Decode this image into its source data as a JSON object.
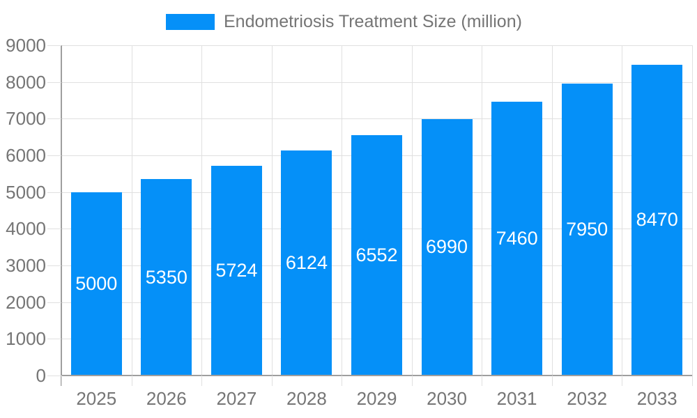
{
  "chart_data": {
    "type": "bar",
    "title": "Endometriosis Treatment Size (million)",
    "categories": [
      "2025",
      "2026",
      "2027",
      "2028",
      "2029",
      "2030",
      "2031",
      "2032",
      "2033"
    ],
    "series": [
      {
        "name": "Endometriosis Treatment Size (million)",
        "values": [
          5000,
          5350,
          5724,
          6124,
          6552,
          6990,
          7460,
          7950,
          8470
        ]
      }
    ],
    "xlabel": "",
    "ylabel": "",
    "ylim": [
      0,
      9000
    ],
    "ytick_step": 1000,
    "ytick_labels": [
      "0",
      "1000",
      "2000",
      "3000",
      "4000",
      "5000",
      "6000",
      "7000",
      "8000",
      "9000"
    ],
    "grid": true,
    "legend_position": "top",
    "bar_labels_inside": true
  },
  "legend": {
    "label": "Endometriosis Treatment Size (million)"
  },
  "colors": {
    "bar": "#0590f8",
    "bar_label": "#ffffff",
    "gridline": "#e0e0e0",
    "axis_line": "#9e9e9e",
    "axis_text": "#757575",
    "background": "#ffffff"
  }
}
